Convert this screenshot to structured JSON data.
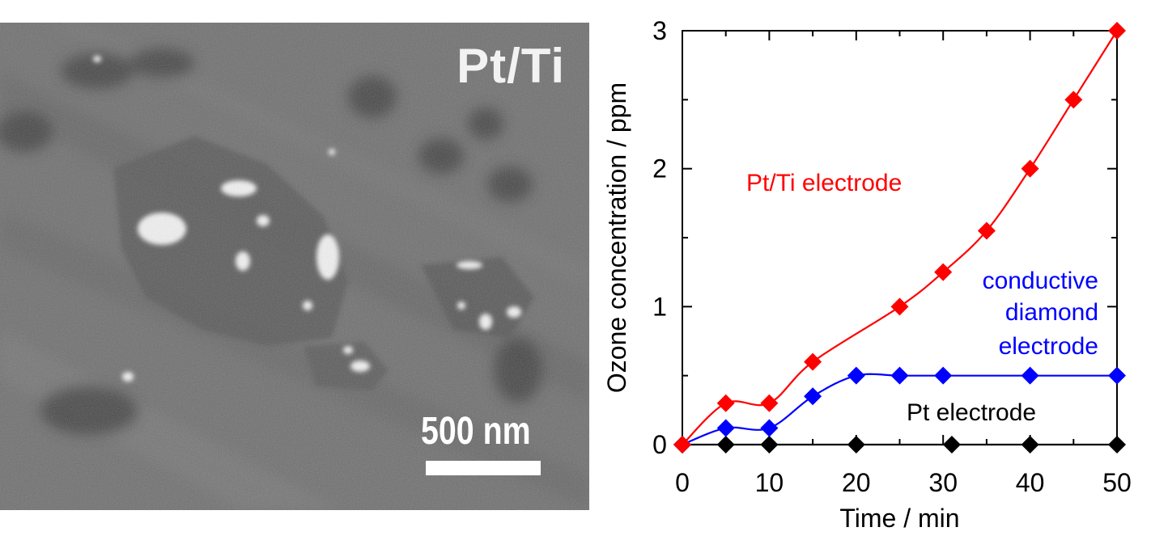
{
  "image_panel": {
    "label": "Pt/Ti",
    "scale_bar_text": "500 nm"
  },
  "chart_data": {
    "type": "line",
    "xlabel": "Time / min",
    "ylabel": "Ozone concentration / ppm",
    "xlim": [
      0,
      50
    ],
    "ylim": [
      0,
      3
    ],
    "xticks": [
      0,
      10,
      20,
      30,
      40,
      50
    ],
    "yticks": [
      0,
      1,
      2,
      3
    ],
    "grid": false,
    "legend": "none",
    "series": [
      {
        "name": "Pt/Ti electrode",
        "color": "#ff0000",
        "x": [
          0,
          5,
          10,
          15,
          25,
          30,
          35,
          40,
          45,
          50
        ],
        "y": [
          0,
          0.3,
          0.3,
          0.6,
          1.0,
          1.25,
          1.55,
          2.0,
          2.5,
          3.0
        ]
      },
      {
        "name": "conductive diamond electrode",
        "label_lines": [
          "conductive",
          "diamond",
          "electrode"
        ],
        "color": "#0000ff",
        "x": [
          0,
          5,
          10,
          15,
          20,
          25,
          30,
          40,
          50
        ],
        "y": [
          0,
          0.12,
          0.12,
          0.35,
          0.5,
          0.5,
          0.5,
          0.5,
          0.5
        ]
      },
      {
        "name": "Pt electrode",
        "color": "#000000",
        "x": [
          0,
          5,
          10,
          20,
          31,
          40,
          50
        ],
        "y": [
          0,
          0,
          0,
          0,
          0,
          0,
          0
        ]
      }
    ]
  }
}
